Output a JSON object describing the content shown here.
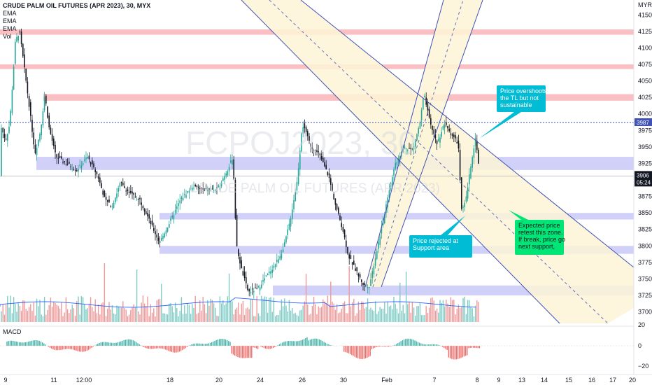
{
  "header": {
    "symbol_line": "CRUDE PALM OIL FUTURES (APR 2023), 30, MYX",
    "indicators": [
      "EMA",
      "EMA",
      "EMA",
      "Vol"
    ]
  },
  "watermark": {
    "ticker": "FCPOJ2023, 30",
    "name": "CRUDE PALM OIL FUTURES (APR 2023)"
  },
  "price_axis": {
    "currency": "MYR",
    "ticks": [
      "4150",
      "4125",
      "4100",
      "4075",
      "4050",
      "4025",
      "4000",
      "3975",
      "3950",
      "3925",
      "3900",
      "3875",
      "3850",
      "3825",
      "3800",
      "3775",
      "3750",
      "3725",
      "3700"
    ],
    "dotted_level_label": "3987",
    "last_price": "3906",
    "countdown": "05:24"
  },
  "macd_panel": {
    "label": "MACD",
    "ticks": [
      "20",
      "0",
      "−20"
    ]
  },
  "time_axis": {
    "labels": [
      "9",
      "11",
      "12:00",
      "18",
      "20",
      "24",
      "26",
      "30",
      "Feb",
      "7",
      "8",
      "9",
      "13",
      "14",
      "15",
      "16",
      "17",
      "20"
    ]
  },
  "annotations": [
    {
      "text": [
        "Price overshoots",
        "the TL but not",
        "sustainable"
      ],
      "color": "#00bcd4"
    },
    {
      "text": [
        "Price rejected at",
        "Support area"
      ],
      "color": "#00bcd4"
    },
    {
      "text": [
        "Expected price",
        "retest this zone.",
        "If break, price go",
        "next support,"
      ],
      "color": "#00e676"
    }
  ],
  "colors": {
    "up": "#26a69a",
    "down": "#131722",
    "vol_up": "#80cbc4",
    "vol_down": "#ef9a9a",
    "resistance_zone": "#f8a9ad",
    "support_zone": "#b3b0f5",
    "channel_fill": "#fdf5d6",
    "trendline": "#3f51b5",
    "macd_hist_pos": "#26a69a",
    "macd_hist_neg": "#ef5350"
  },
  "chart_data": {
    "type": "candlestick",
    "title": "CRUDE PALM OIL FUTURES (APR 2023), 30, MYX",
    "ylim": [
      3690,
      4170
    ],
    "y_unit": "MYR",
    "approx_close_path": [
      {
        "x": "9",
        "y": 3985
      },
      {
        "x": "9",
        "y": 4125
      },
      {
        "x": "10",
        "y": 3990
      },
      {
        "x": "11",
        "y": 3980
      },
      {
        "x": "12:00",
        "y": 3925
      },
      {
        "x": "18",
        "y": 3810
      },
      {
        "x": "20",
        "y": 3925
      },
      {
        "x": "24",
        "y": 3730
      },
      {
        "x": "26",
        "y": 3775
      },
      {
        "x": "30",
        "y": 3985
      },
      {
        "x": "31",
        "y": 3840
      },
      {
        "x": "Feb",
        "y": 3770
      },
      {
        "x": "6",
        "y": 3735
      },
      {
        "x": "7",
        "y": 3930
      },
      {
        "x": "8",
        "y": 4030
      },
      {
        "x": "9",
        "y": 3960
      },
      {
        "x": "10",
        "y": 3850
      },
      {
        "x": "13",
        "y": 3965
      },
      {
        "x": "13",
        "y": 3906
      }
    ],
    "zones_resistance": [
      [
        4120,
        4128
      ],
      [
        4068,
        4075
      ],
      [
        4020,
        4030
      ]
    ],
    "zones_support": [
      [
        3915,
        3935
      ],
      [
        3840,
        3850
      ],
      [
        3788,
        3800
      ],
      [
        3725,
        3740
      ]
    ],
    "macd_range": [
      -20,
      20
    ]
  }
}
